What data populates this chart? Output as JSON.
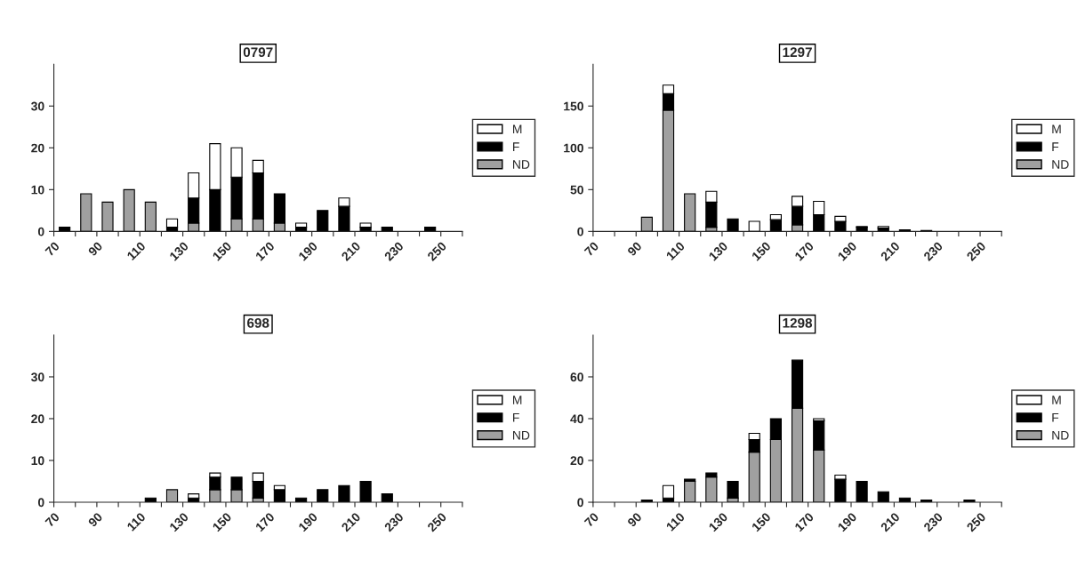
{
  "chart_data": [
    {
      "type": "bar",
      "title": "0797",
      "stacked": true,
      "legend": "right",
      "grid": false,
      "categories": [
        "70",
        null,
        "90",
        null,
        "110",
        null,
        "130",
        null,
        "150",
        null,
        "170",
        null,
        "190",
        null,
        "210",
        null,
        "230",
        null,
        "250"
      ],
      "ylim": [
        0,
        40
      ],
      "yticks": [
        0,
        10,
        20,
        30
      ],
      "series": [
        {
          "name": "ND",
          "color": "#a0a0a0",
          "values": [
            0,
            9,
            7,
            10,
            7,
            0,
            2,
            0,
            3,
            3,
            2,
            0,
            0,
            0,
            0,
            0,
            0,
            0,
            0
          ]
        },
        {
          "name": "F",
          "color": "#000000",
          "values": [
            1,
            0,
            0,
            0,
            0,
            1,
            6,
            10,
            10,
            11,
            7,
            1,
            5,
            6,
            1,
            1,
            0,
            1,
            0
          ]
        },
        {
          "name": "M",
          "color": "#ffffff",
          "values": [
            0,
            0,
            0,
            0,
            0,
            2,
            6,
            11,
            7,
            3,
            0,
            1,
            0,
            2,
            1,
            0,
            0,
            0,
            0
          ]
        }
      ]
    },
    {
      "type": "bar",
      "title": "1297",
      "stacked": true,
      "legend": "right",
      "grid": false,
      "categories": [
        "70",
        null,
        "90",
        null,
        "110",
        null,
        "130",
        null,
        "150",
        null,
        "170",
        null,
        "190",
        null,
        "210",
        null,
        "230",
        null,
        "250"
      ],
      "ylim": [
        0,
        200
      ],
      "yticks": [
        0,
        50,
        100,
        150
      ],
      "series": [
        {
          "name": "ND",
          "color": "#a0a0a0",
          "values": [
            0,
            0,
            17,
            145,
            45,
            5,
            0,
            0,
            0,
            8,
            0,
            0,
            0,
            0,
            0,
            0,
            0,
            0,
            0
          ]
        },
        {
          "name": "F",
          "color": "#000000",
          "values": [
            0,
            0,
            0,
            20,
            0,
            30,
            15,
            0,
            14,
            22,
            20,
            12,
            5,
            4,
            2,
            1,
            0,
            0,
            0
          ]
        },
        {
          "name": "M",
          "color": "#ffffff",
          "values": [
            0,
            0,
            0,
            10,
            0,
            13,
            0,
            12,
            6,
            12,
            16,
            6,
            1,
            2,
            0,
            0,
            0,
            0,
            0
          ]
        }
      ]
    },
    {
      "type": "bar",
      "title": "698",
      "stacked": true,
      "legend": "right",
      "grid": false,
      "categories": [
        "70",
        null,
        "90",
        null,
        "110",
        null,
        "130",
        null,
        "150",
        null,
        "170",
        null,
        "190",
        null,
        "210",
        null,
        "230",
        null,
        "250"
      ],
      "ylim": [
        0,
        40
      ],
      "yticks": [
        0,
        10,
        20,
        30
      ],
      "series": [
        {
          "name": "ND",
          "color": "#a0a0a0",
          "values": [
            0,
            0,
            0,
            0,
            0,
            3,
            0,
            3,
            3,
            1,
            0,
            0,
            0,
            0,
            0,
            0,
            0,
            0,
            0
          ]
        },
        {
          "name": "F",
          "color": "#000000",
          "values": [
            0,
            0,
            0,
            0,
            1,
            0,
            1,
            3,
            3,
            4,
            3,
            1,
            3,
            4,
            5,
            2,
            0,
            0,
            0
          ]
        },
        {
          "name": "M",
          "color": "#ffffff",
          "values": [
            0,
            0,
            0,
            0,
            0,
            0,
            1,
            1,
            0,
            2,
            1,
            0,
            0,
            0,
            0,
            0,
            0,
            0,
            0
          ]
        }
      ]
    },
    {
      "type": "bar",
      "title": "1298",
      "stacked": true,
      "legend": "right",
      "grid": false,
      "categories": [
        "70",
        null,
        "90",
        null,
        "110",
        null,
        "130",
        null,
        "150",
        null,
        "170",
        null,
        "190",
        null,
        "210",
        null,
        "230",
        null,
        "250"
      ],
      "ylim": [
        0,
        80
      ],
      "yticks": [
        0,
        20,
        40,
        60
      ],
      "series": [
        {
          "name": "ND",
          "color": "#a0a0a0",
          "values": [
            0,
            0,
            0,
            0,
            10,
            12,
            2,
            24,
            30,
            45,
            25,
            0,
            0,
            0,
            0,
            0,
            0,
            0,
            0
          ]
        },
        {
          "name": "F",
          "color": "#000000",
          "values": [
            0,
            0,
            1,
            2,
            1,
            2,
            8,
            6,
            10,
            23,
            14,
            11,
            10,
            5,
            2,
            1,
            0,
            1,
            0
          ]
        },
        {
          "name": "M",
          "color": "#ffffff",
          "values": [
            0,
            0,
            0,
            6,
            0,
            0,
            0,
            3,
            0,
            0,
            1,
            2,
            0,
            0,
            0,
            0,
            0,
            0,
            0
          ]
        }
      ]
    }
  ]
}
